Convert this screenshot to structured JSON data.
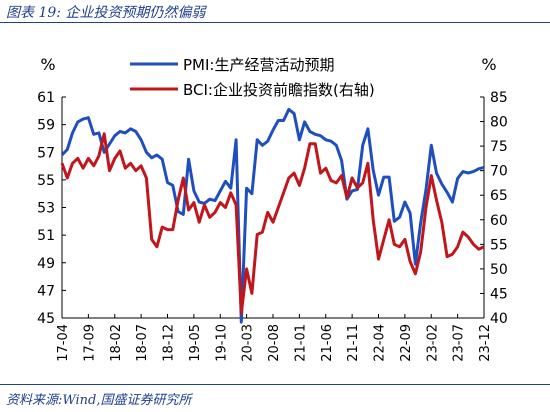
{
  "figure_title": "图表 19:  企业投资预期仍然偏弱",
  "source": "资料来源:Wind,国盛证券研究所",
  "chart_data": {
    "type": "line",
    "left_unit": "%",
    "right_unit": "%",
    "x_ticks": [
      "17-04",
      "17-09",
      "18-02",
      "18-07",
      "18-12",
      "19-05",
      "19-10",
      "20-03",
      "20-08",
      "21-01",
      "21-06",
      "21-11",
      "22-04",
      "22-09",
      "23-02",
      "23-07",
      "23-12"
    ],
    "x_start": "2017-04",
    "x_end": "2023-12",
    "left_axis": {
      "min": 45,
      "max": 61,
      "ticks": [
        45,
        47,
        49,
        51,
        53,
        55,
        57,
        59,
        61
      ]
    },
    "right_axis": {
      "min": 40,
      "max": 85,
      "ticks": [
        40,
        45,
        50,
        55,
        60,
        65,
        70,
        75,
        80,
        85
      ]
    },
    "legend": "top-center",
    "series": [
      {
        "name": "PMI:生产经营活动预期",
        "axis": "left",
        "color": "#1f4fbf",
        "points": [
          [
            "2017-04",
            56.8
          ],
          [
            "2017-05",
            57.2
          ],
          [
            "2017-06",
            58.4
          ],
          [
            "2017-07",
            59.2
          ],
          [
            "2017-08",
            59.4
          ],
          [
            "2017-09",
            59.5
          ],
          [
            "2017-10",
            58.3
          ],
          [
            "2017-11",
            58.4
          ],
          [
            "2017-12",
            57.0
          ],
          [
            "2018-01",
            57.6
          ],
          [
            "2018-02",
            58.2
          ],
          [
            "2018-03",
            58.5
          ],
          [
            "2018-04",
            58.4
          ],
          [
            "2018-05",
            58.7
          ],
          [
            "2018-06",
            58.5
          ],
          [
            "2018-07",
            57.9
          ],
          [
            "2018-08",
            57.0
          ],
          [
            "2018-09",
            56.6
          ],
          [
            "2018-10",
            56.8
          ],
          [
            "2018-11",
            56.5
          ],
          [
            "2018-12",
            54.8
          ],
          [
            "2019-01",
            54.6
          ],
          [
            "2019-02",
            52.7
          ],
          [
            "2019-03",
            52.5
          ],
          [
            "2019-04",
            56.5
          ],
          [
            "2019-05",
            54.2
          ],
          [
            "2019-06",
            53.4
          ],
          [
            "2019-07",
            53.3
          ],
          [
            "2019-08",
            53.6
          ],
          [
            "2019-09",
            53.5
          ],
          [
            "2019-10",
            54.2
          ],
          [
            "2019-11",
            54.9
          ],
          [
            "2019-12",
            54.4
          ],
          [
            "2020-01",
            57.9
          ],
          [
            "2020-02",
            44.7
          ],
          [
            "2020-03",
            54.4
          ],
          [
            "2020-04",
            54.0
          ],
          [
            "2020-05",
            57.9
          ],
          [
            "2020-06",
            57.5
          ],
          [
            "2020-07",
            57.8
          ],
          [
            "2020-08",
            58.6
          ],
          [
            "2020-09",
            59.3
          ],
          [
            "2020-10",
            59.3
          ],
          [
            "2020-11",
            60.1
          ],
          [
            "2020-12",
            59.8
          ],
          [
            "2021-01",
            57.9
          ],
          [
            "2021-02",
            59.2
          ],
          [
            "2021-03",
            58.5
          ],
          [
            "2021-04",
            58.3
          ],
          [
            "2021-05",
            58.2
          ],
          [
            "2021-06",
            57.9
          ],
          [
            "2021-07",
            57.8
          ],
          [
            "2021-08",
            57.5
          ],
          [
            "2021-09",
            56.4
          ],
          [
            "2021-10",
            53.6
          ],
          [
            "2021-11",
            54.2
          ],
          [
            "2021-12",
            54.3
          ],
          [
            "2022-01",
            57.5
          ],
          [
            "2022-02",
            58.7
          ],
          [
            "2022-03",
            55.7
          ],
          [
            "2022-04",
            53.9
          ],
          [
            "2022-05",
            55.2
          ],
          [
            "2022-06",
            55.2
          ],
          [
            "2022-07",
            52.0
          ],
          [
            "2022-08",
            52.3
          ],
          [
            "2022-09",
            53.4
          ],
          [
            "2022-10",
            52.6
          ],
          [
            "2022-11",
            48.9
          ],
          [
            "2022-12",
            51.9
          ],
          [
            "2023-01",
            54.3
          ],
          [
            "2023-02",
            57.5
          ],
          [
            "2023-03",
            55.5
          ],
          [
            "2023-04",
            54.7
          ],
          [
            "2023-05",
            54.1
          ],
          [
            "2023-06",
            53.4
          ],
          [
            "2023-07",
            55.1
          ],
          [
            "2023-08",
            55.6
          ],
          [
            "2023-09",
            55.5
          ],
          [
            "2023-10",
            55.6
          ],
          [
            "2023-11",
            55.8
          ],
          [
            "2023-12",
            55.9
          ]
        ]
      },
      {
        "name": "BCI:企业投资前瞻指数(右轴)",
        "axis": "right",
        "color": "#c0161c",
        "points": [
          [
            "2017-04",
            71.5
          ],
          [
            "2017-05",
            68.5
          ],
          [
            "2017-06",
            71.5
          ],
          [
            "2017-07",
            72.5
          ],
          [
            "2017-08",
            70.5
          ],
          [
            "2017-09",
            72.5
          ],
          [
            "2017-10",
            71.0
          ],
          [
            "2017-11",
            73.0
          ],
          [
            "2017-12",
            77.5
          ],
          [
            "2018-01",
            70.0
          ],
          [
            "2018-02",
            72.5
          ],
          [
            "2018-03",
            74.0
          ],
          [
            "2018-04",
            70.5
          ],
          [
            "2018-05",
            71.5
          ],
          [
            "2018-06",
            70.0
          ],
          [
            "2018-07",
            71.0
          ],
          [
            "2018-08",
            68.5
          ],
          [
            "2018-09",
            56.0
          ],
          [
            "2018-10",
            54.5
          ],
          [
            "2018-11",
            58.5
          ],
          [
            "2018-12",
            58.0
          ],
          [
            "2019-01",
            58.0
          ],
          [
            "2019-02",
            64.0
          ],
          [
            "2019-03",
            68.5
          ],
          [
            "2019-04",
            62.0
          ],
          [
            "2019-05",
            63.5
          ],
          [
            "2019-06",
            59.5
          ],
          [
            "2019-07",
            63.0
          ],
          [
            "2019-08",
            60.5
          ],
          [
            "2019-09",
            61.5
          ],
          [
            "2019-10",
            63.5
          ],
          [
            "2019-11",
            62.5
          ],
          [
            "2019-12",
            65.5
          ],
          [
            "2020-01",
            63.0
          ],
          [
            "2020-02",
            41.0
          ],
          [
            "2020-03",
            50.0
          ],
          [
            "2020-04",
            45.0
          ],
          [
            "2020-05",
            57.0
          ],
          [
            "2020-06",
            57.5
          ],
          [
            "2020-07",
            61.5
          ],
          [
            "2020-08",
            59.5
          ],
          [
            "2020-09",
            62.5
          ],
          [
            "2020-10",
            65.5
          ],
          [
            "2020-11",
            68.5
          ],
          [
            "2020-12",
            69.5
          ],
          [
            "2021-01",
            67.0
          ],
          [
            "2021-02",
            70.5
          ],
          [
            "2021-03",
            75.5
          ],
          [
            "2021-04",
            75.5
          ],
          [
            "2021-05",
            69.5
          ],
          [
            "2021-06",
            70.5
          ],
          [
            "2021-07",
            68.0
          ],
          [
            "2021-08",
            67.5
          ],
          [
            "2021-09",
            69.0
          ],
          [
            "2021-10",
            64.5
          ],
          [
            "2021-11",
            68.5
          ],
          [
            "2021-12",
            66.5
          ],
          [
            "2022-01",
            67.5
          ],
          [
            "2022-02",
            71.5
          ],
          [
            "2022-03",
            60.0
          ],
          [
            "2022-04",
            52.0
          ],
          [
            "2022-05",
            56.0
          ],
          [
            "2022-06",
            60.0
          ],
          [
            "2022-07",
            55.0
          ],
          [
            "2022-08",
            54.5
          ],
          [
            "2022-09",
            56.0
          ],
          [
            "2022-10",
            51.5
          ],
          [
            "2022-11",
            49.0
          ],
          [
            "2022-12",
            53.5
          ],
          [
            "2023-01",
            62.5
          ],
          [
            "2023-02",
            69.0
          ],
          [
            "2023-03",
            64.0
          ],
          [
            "2023-04",
            59.5
          ],
          [
            "2023-05",
            52.5
          ],
          [
            "2023-06",
            53.0
          ],
          [
            "2023-07",
            54.5
          ],
          [
            "2023-08",
            57.5
          ],
          [
            "2023-09",
            56.5
          ],
          [
            "2023-10",
            55.0
          ],
          [
            "2023-11",
            54.0
          ],
          [
            "2023-12",
            54.5
          ]
        ]
      }
    ]
  }
}
